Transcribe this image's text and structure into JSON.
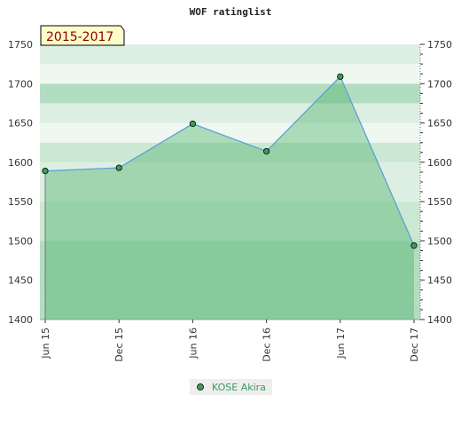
{
  "colors": {
    "band_dark": "#b3ddc1",
    "band_mid": "#cbe8d3",
    "band_light": "#dcefe2",
    "band_pale": "#eef8f1",
    "area_fill": "#3eaa5e",
    "line": "#5b9bd5",
    "marker_fill": "#3f9b5a",
    "legend_bg": "#eeeeee",
    "legend_text": "#3a9b5a",
    "period_bg": "#fdfdcc",
    "period_text": "#8b0000"
  },
  "chart_data": {
    "type": "area",
    "title": "WOF ratinglist",
    "period_label": "2015-2017",
    "ylim": [
      1400,
      1750
    ],
    "y_ticks": [
      "1400",
      "1450",
      "1500",
      "1550",
      "1600",
      "1650",
      "1700",
      "1750"
    ],
    "categories": [
      "Jun 15",
      "Dec 15",
      "Jun 16",
      "Dec 16",
      "Jun 17",
      "Dec 17"
    ],
    "series": [
      {
        "name": "KOSE Akira",
        "values": [
          1589,
          1593,
          1649,
          1614,
          1709,
          1494
        ]
      }
    ],
    "legend_position": "bottom",
    "grid": true
  }
}
